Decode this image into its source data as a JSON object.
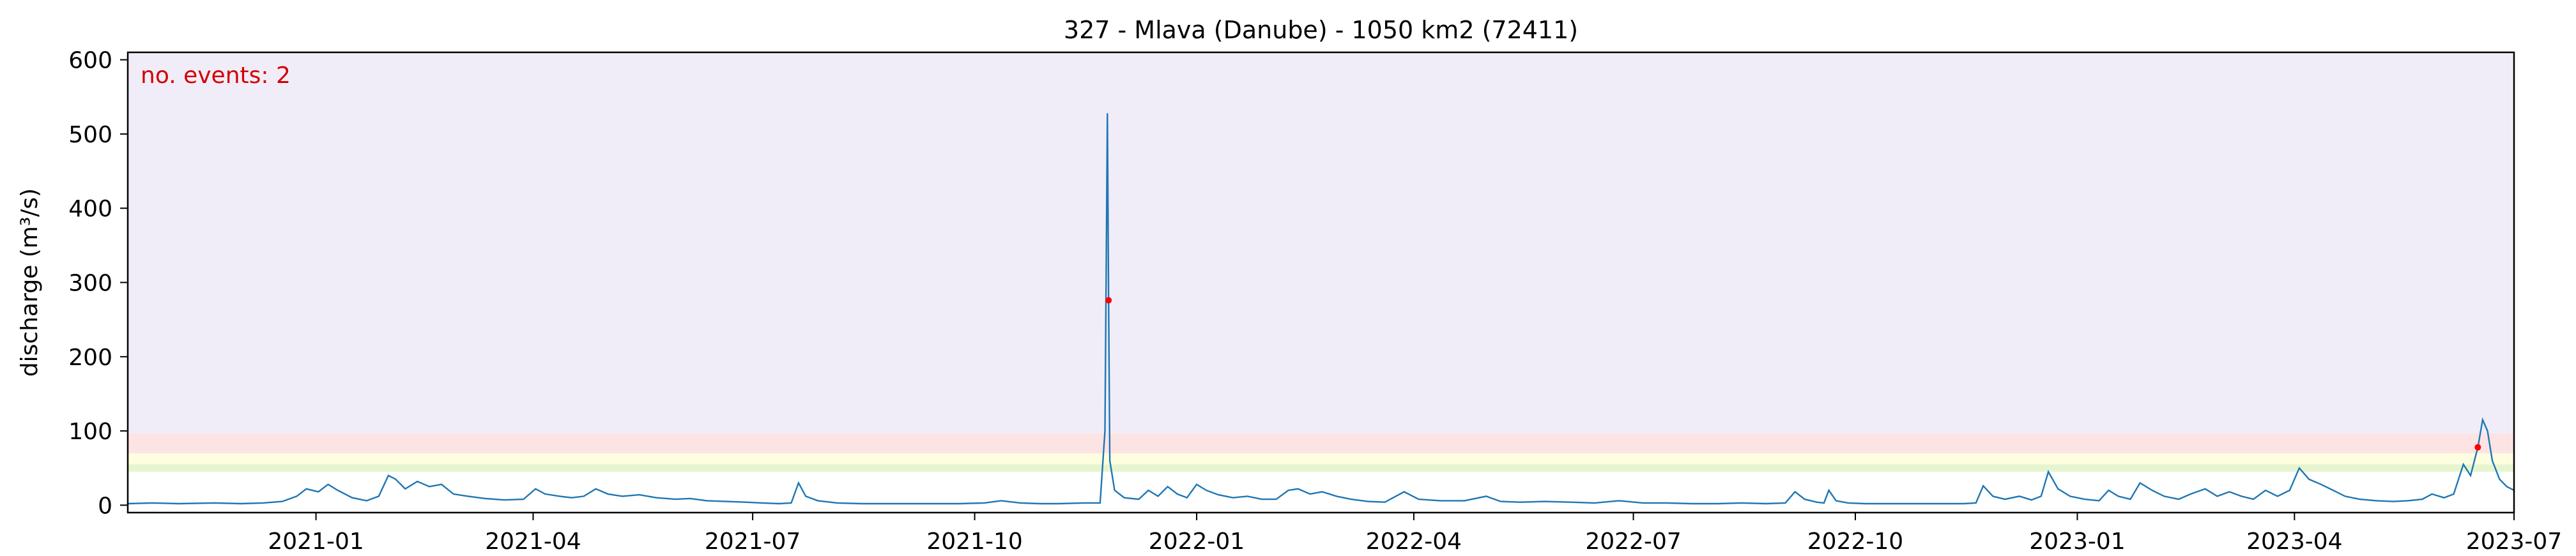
{
  "chart_data": {
    "type": "line",
    "title": "327 - Mlava (Danube) - 1050 km2 (72411)",
    "xlabel": "",
    "ylabel": "discharge (m³/s)",
    "annotation": "no. events: 2",
    "xlim": [
      "2020-10-15",
      "2023-07-01"
    ],
    "ylim": [
      -10,
      610
    ],
    "x_ticks": [
      "2021-01",
      "2021-04",
      "2021-07",
      "2021-10",
      "2022-01",
      "2022-04",
      "2022-07",
      "2022-10",
      "2023-01",
      "2023-04",
      "2023-07"
    ],
    "y_ticks": [
      0,
      100,
      200,
      300,
      400,
      500,
      600
    ],
    "grid": false,
    "threshold_bands": [
      {
        "from": 45,
        "to": 55,
        "color": "#e6f5d0"
      },
      {
        "from": 55,
        "to": 70,
        "color": "#fdfde0"
      },
      {
        "from": 70,
        "to": 97,
        "color": "#fde4e4"
      },
      {
        "from": 97,
        "to": 610,
        "color": "#f1edf8"
      }
    ],
    "series": [
      {
        "color": "#1f77b4",
        "points": [
          [
            "2020-10-15",
            2
          ],
          [
            "2020-10-25",
            3
          ],
          [
            "2020-11-05",
            2
          ],
          [
            "2020-11-20",
            3
          ],
          [
            "2020-12-01",
            2
          ],
          [
            "2020-12-10",
            3
          ],
          [
            "2020-12-18",
            5
          ],
          [
            "2020-12-24",
            12
          ],
          [
            "2020-12-28",
            22
          ],
          [
            "2021-01-02",
            18
          ],
          [
            "2021-01-06",
            28
          ],
          [
            "2021-01-10",
            20
          ],
          [
            "2021-01-16",
            10
          ],
          [
            "2021-01-22",
            6
          ],
          [
            "2021-01-27",
            12
          ],
          [
            "2021-01-31",
            40
          ],
          [
            "2021-02-03",
            35
          ],
          [
            "2021-02-07",
            22
          ],
          [
            "2021-02-12",
            32
          ],
          [
            "2021-02-17",
            25
          ],
          [
            "2021-02-22",
            28
          ],
          [
            "2021-02-27",
            15
          ],
          [
            "2021-03-05",
            12
          ],
          [
            "2021-03-12",
            9
          ],
          [
            "2021-03-20",
            7
          ],
          [
            "2021-03-28",
            8
          ],
          [
            "2021-04-02",
            22
          ],
          [
            "2021-04-06",
            15
          ],
          [
            "2021-04-12",
            12
          ],
          [
            "2021-04-17",
            10
          ],
          [
            "2021-04-22",
            12
          ],
          [
            "2021-04-27",
            22
          ],
          [
            "2021-05-02",
            15
          ],
          [
            "2021-05-08",
            12
          ],
          [
            "2021-05-15",
            14
          ],
          [
            "2021-05-22",
            10
          ],
          [
            "2021-05-30",
            8
          ],
          [
            "2021-06-05",
            9
          ],
          [
            "2021-06-12",
            6
          ],
          [
            "2021-06-20",
            5
          ],
          [
            "2021-06-28",
            4
          ],
          [
            "2021-07-05",
            3
          ],
          [
            "2021-07-12",
            2
          ],
          [
            "2021-07-17",
            3
          ],
          [
            "2021-07-20",
            30
          ],
          [
            "2021-07-23",
            12
          ],
          [
            "2021-07-28",
            6
          ],
          [
            "2021-08-05",
            3
          ],
          [
            "2021-08-15",
            2
          ],
          [
            "2021-08-25",
            2
          ],
          [
            "2021-09-05",
            2
          ],
          [
            "2021-09-15",
            2
          ],
          [
            "2021-09-25",
            2
          ],
          [
            "2021-10-05",
            3
          ],
          [
            "2021-10-12",
            6
          ],
          [
            "2021-10-20",
            3
          ],
          [
            "2021-10-28",
            2
          ],
          [
            "2021-11-05",
            2
          ],
          [
            "2021-11-15",
            3
          ],
          [
            "2021-11-22",
            3
          ],
          [
            "2021-11-24",
            100
          ],
          [
            "2021-11-25",
            528
          ],
          [
            "2021-11-25T12:00:00",
            276
          ],
          [
            "2021-11-26",
            60
          ],
          [
            "2021-11-28",
            20
          ],
          [
            "2021-12-02",
            10
          ],
          [
            "2021-12-08",
            8
          ],
          [
            "2021-12-12",
            20
          ],
          [
            "2021-12-16",
            12
          ],
          [
            "2021-12-20",
            25
          ],
          [
            "2021-12-24",
            15
          ],
          [
            "2021-12-28",
            10
          ],
          [
            "2022-01-01",
            28
          ],
          [
            "2022-01-05",
            20
          ],
          [
            "2022-01-10",
            14
          ],
          [
            "2022-01-16",
            10
          ],
          [
            "2022-01-22",
            12
          ],
          [
            "2022-01-28",
            8
          ],
          [
            "2022-02-03",
            8
          ],
          [
            "2022-02-08",
            20
          ],
          [
            "2022-02-12",
            22
          ],
          [
            "2022-02-17",
            15
          ],
          [
            "2022-02-22",
            18
          ],
          [
            "2022-02-28",
            12
          ],
          [
            "2022-03-06",
            8
          ],
          [
            "2022-03-13",
            5
          ],
          [
            "2022-03-20",
            4
          ],
          [
            "2022-03-28",
            18
          ],
          [
            "2022-04-03",
            8
          ],
          [
            "2022-04-12",
            6
          ],
          [
            "2022-04-22",
            6
          ],
          [
            "2022-05-01",
            12
          ],
          [
            "2022-05-07",
            5
          ],
          [
            "2022-05-15",
            4
          ],
          [
            "2022-05-25",
            5
          ],
          [
            "2022-06-05",
            4
          ],
          [
            "2022-06-15",
            3
          ],
          [
            "2022-06-25",
            6
          ],
          [
            "2022-07-05",
            3
          ],
          [
            "2022-07-15",
            3
          ],
          [
            "2022-07-25",
            2
          ],
          [
            "2022-08-05",
            2
          ],
          [
            "2022-08-15",
            3
          ],
          [
            "2022-08-25",
            2
          ],
          [
            "2022-09-02",
            3
          ],
          [
            "2022-09-06",
            18
          ],
          [
            "2022-09-10",
            8
          ],
          [
            "2022-09-15",
            4
          ],
          [
            "2022-09-18",
            3
          ],
          [
            "2022-09-20",
            20
          ],
          [
            "2022-09-23",
            6
          ],
          [
            "2022-09-28",
            3
          ],
          [
            "2022-10-05",
            2
          ],
          [
            "2022-10-15",
            2
          ],
          [
            "2022-10-25",
            2
          ],
          [
            "2022-11-05",
            2
          ],
          [
            "2022-11-15",
            2
          ],
          [
            "2022-11-20",
            3
          ],
          [
            "2022-11-23",
            26
          ],
          [
            "2022-11-27",
            12
          ],
          [
            "2022-12-02",
            8
          ],
          [
            "2022-12-08",
            12
          ],
          [
            "2022-12-13",
            7
          ],
          [
            "2022-12-17",
            12
          ],
          [
            "2022-12-20",
            45
          ],
          [
            "2022-12-24",
            22
          ],
          [
            "2022-12-29",
            12
          ],
          [
            "2023-01-04",
            8
          ],
          [
            "2023-01-10",
            6
          ],
          [
            "2023-01-14",
            20
          ],
          [
            "2023-01-18",
            12
          ],
          [
            "2023-01-23",
            8
          ],
          [
            "2023-01-27",
            30
          ],
          [
            "2023-02-01",
            20
          ],
          [
            "2023-02-06",
            12
          ],
          [
            "2023-02-12",
            8
          ],
          [
            "2023-02-17",
            15
          ],
          [
            "2023-02-23",
            22
          ],
          [
            "2023-02-28",
            12
          ],
          [
            "2023-03-05",
            18
          ],
          [
            "2023-03-10",
            12
          ],
          [
            "2023-03-15",
            8
          ],
          [
            "2023-03-20",
            20
          ],
          [
            "2023-03-25",
            12
          ],
          [
            "2023-03-30",
            20
          ],
          [
            "2023-04-03",
            50
          ],
          [
            "2023-04-07",
            35
          ],
          [
            "2023-04-12",
            28
          ],
          [
            "2023-04-17",
            20
          ],
          [
            "2023-04-22",
            12
          ],
          [
            "2023-04-28",
            8
          ],
          [
            "2023-05-05",
            6
          ],
          [
            "2023-05-12",
            5
          ],
          [
            "2023-05-18",
            6
          ],
          [
            "2023-05-24",
            8
          ],
          [
            "2023-05-28",
            15
          ],
          [
            "2023-06-02",
            10
          ],
          [
            "2023-06-06",
            15
          ],
          [
            "2023-06-10",
            55
          ],
          [
            "2023-06-13",
            40
          ],
          [
            "2023-06-16",
            78
          ],
          [
            "2023-06-18",
            115
          ],
          [
            "2023-06-20",
            100
          ],
          [
            "2023-06-22",
            60
          ],
          [
            "2023-06-25",
            35
          ],
          [
            "2023-06-28",
            25
          ],
          [
            "2023-07-01",
            20
          ]
        ]
      }
    ],
    "events": [
      {
        "x": "2021-11-25T12:00:00",
        "y": 276,
        "color": "#ff0000"
      },
      {
        "x": "2023-06-16",
        "y": 78,
        "color": "#ff0000"
      }
    ]
  }
}
